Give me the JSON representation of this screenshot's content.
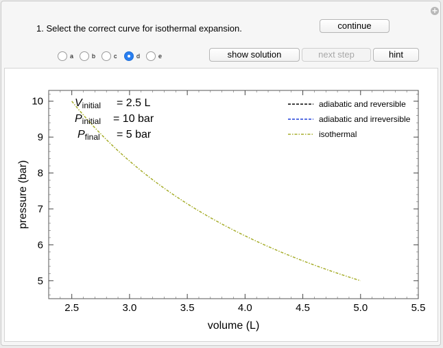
{
  "question": "1. Select the correct curve for isothermal expansion.",
  "buttons": {
    "continue": "continue",
    "show_solution": "show solution",
    "next_step": "next step",
    "hint": "hint"
  },
  "radio_options": [
    {
      "label": "a",
      "selected": false
    },
    {
      "label": "b",
      "selected": false
    },
    {
      "label": "c",
      "selected": false
    },
    {
      "label": "d",
      "selected": true
    },
    {
      "label": "e",
      "selected": false
    }
  ],
  "params": [
    {
      "symbol": "V",
      "sub": "initial",
      "value": "= 2.5 L"
    },
    {
      "symbol": "P",
      "sub": "initial",
      "value": "= 10 bar"
    },
    {
      "symbol": "P",
      "sub": "final",
      "value": "= 5 bar"
    }
  ],
  "chart_data": {
    "type": "line",
    "xlabel": "volume (L)",
    "ylabel": "pressure (bar)",
    "xlim": [
      2.3,
      5.5
    ],
    "ylim": [
      4.5,
      10.3
    ],
    "xticks": [
      "2.5",
      "3.0",
      "3.5",
      "4.0",
      "4.5",
      "5.0",
      "5.5"
    ],
    "yticks": [
      "5",
      "6",
      "7",
      "8",
      "9",
      "10"
    ],
    "legend_position": "top-right",
    "legend": [
      {
        "label": "adiabatic and reversible",
        "color": "#000000",
        "dash": "dashed"
      },
      {
        "label": "adiabatic and irreversible",
        "color": "#1f3fd8",
        "dash": "dashed"
      },
      {
        "label": "isothermal",
        "color": "#a6ad2a",
        "dash": "dash-dot"
      }
    ],
    "series": [
      {
        "name": "isothermal",
        "color": "#a6ad2a",
        "x": [
          2.5,
          2.75,
          3.0,
          3.25,
          3.5,
          3.75,
          4.0,
          4.25,
          4.5,
          4.75,
          5.0
        ],
        "y": [
          10.0,
          9.09,
          8.33,
          7.69,
          7.14,
          6.67,
          6.25,
          5.88,
          5.56,
          5.26,
          5.0
        ]
      }
    ]
  }
}
